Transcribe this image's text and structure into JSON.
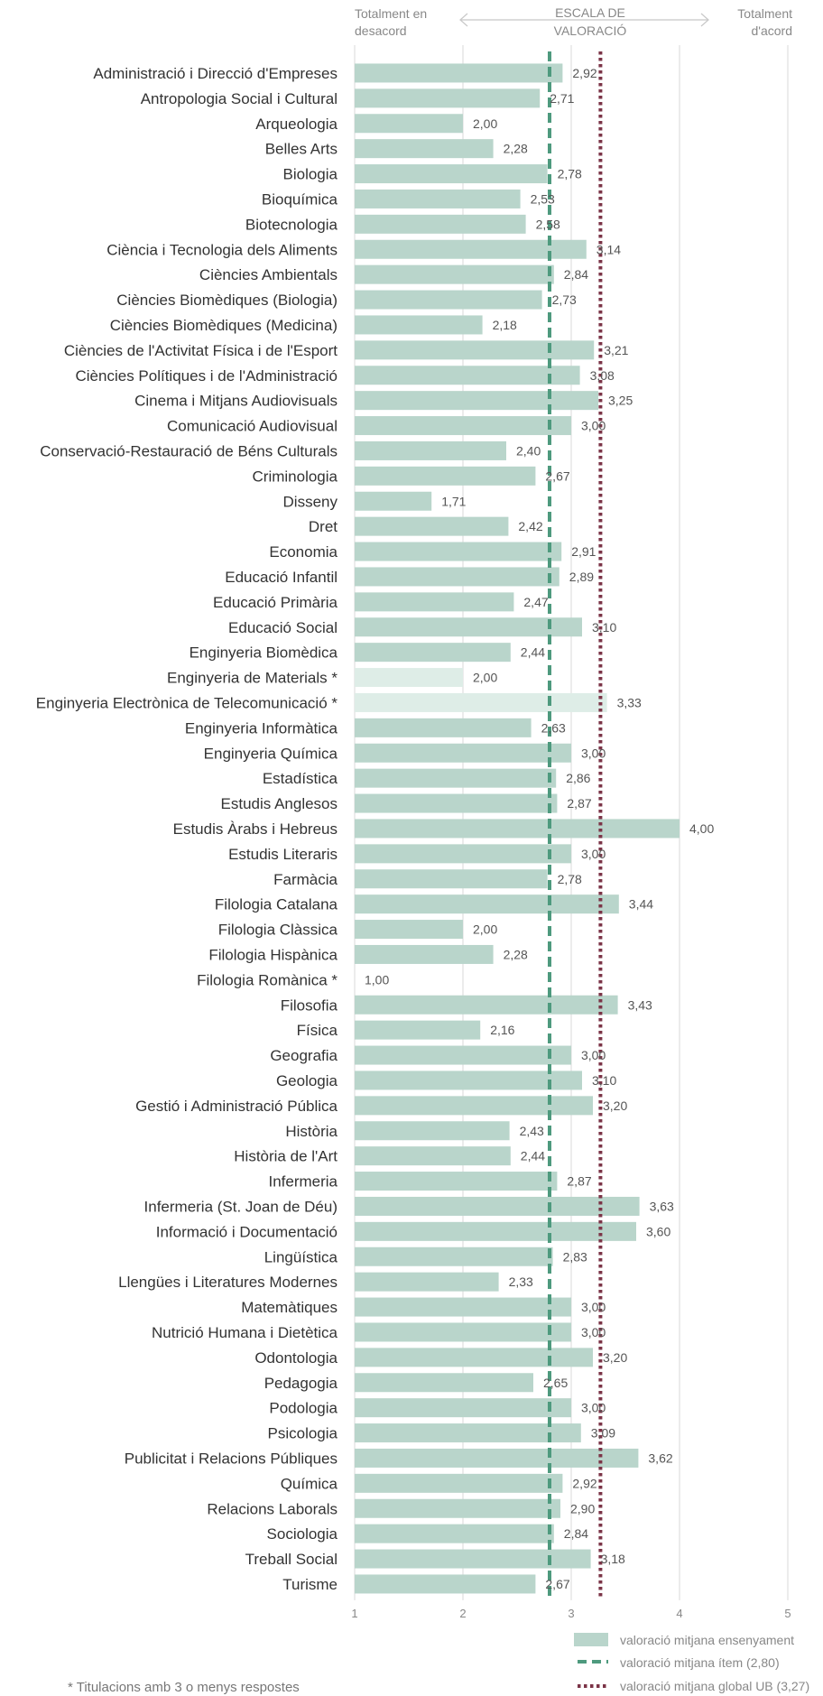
{
  "header": {
    "left_line1": "Totalment en",
    "left_line2": "desacord",
    "center_line1": "ESCALA DE",
    "center_line2": "VALORACIÓ",
    "right_line1": "Totalment",
    "right_line2": "d'acord"
  },
  "legend": {
    "bar_label": "valoració mitjana ensenyament",
    "item_label": "valoració mitjana ítem (2,80)",
    "global_label": "valoració mitjana global UB (3,27)"
  },
  "footnote": "* Titulacions amb 3 o menys respostes",
  "colors": {
    "bar": "#b9d5cb",
    "bar_light": "#deede7",
    "item_line": "#4e9a7e",
    "global_line": "#7b3447",
    "grid": "#d9d9d9"
  },
  "chart_data": {
    "type": "bar",
    "orientation": "horizontal",
    "xlim": [
      1,
      5
    ],
    "ticks": [
      "1",
      "2",
      "3",
      "4",
      "5"
    ],
    "reference_lines": [
      {
        "name": "valoració mitjana ítem (2,80)",
        "value": 2.8,
        "style": "dashed"
      },
      {
        "name": "valoració mitjana global UB (3,27)",
        "value": 3.27,
        "style": "dotted"
      }
    ],
    "categories": [
      "Administració i Direcció d'Empreses",
      "Antropologia Social i Cultural",
      "Arqueologia",
      "Belles Arts",
      "Biologia",
      "Bioquímica",
      "Biotecnologia",
      "Ciència i Tecnologia dels Aliments",
      "Ciències Ambientals",
      "Ciències Biomèdiques (Biologia)",
      "Ciències Biomèdiques (Medicina)",
      "Ciències de l'Activitat Física i de l'Esport",
      "Ciències Polítiques i de l'Administració",
      "Cinema i Mitjans Audiovisuals",
      "Comunicació Audiovisual",
      "Conservació-Restauració de Béns Culturals",
      "Criminologia",
      "Disseny",
      "Dret",
      "Economia",
      "Educació Infantil",
      "Educació Primària",
      "Educació Social",
      "Enginyeria Biomèdica",
      "Enginyeria de Materials *",
      "Enginyeria Electrònica de Telecomunicació *",
      "Enginyeria Informàtica",
      "Enginyeria Química",
      "Estadística",
      "Estudis Anglesos",
      "Estudis Àrabs i Hebreus",
      "Estudis Literaris",
      "Farmàcia",
      "Filologia Catalana",
      "Filologia Clàssica",
      "Filologia Hispànica",
      "Filologia Romànica *",
      "Filosofia",
      "Física",
      "Geografia",
      "Geologia",
      "Gestió i Administració Pública",
      "Història",
      "Història de l'Art",
      "Infermeria",
      "Infermeria (St. Joan de Déu)",
      "Informació i Documentació",
      "Lingüística",
      "Llengües i Literatures Modernes",
      "Matemàtiques",
      "Nutrició Humana i Dietètica",
      "Odontologia",
      "Pedagogia",
      "Podologia",
      "Psicologia",
      "Publicitat i Relacions Públiques",
      "Química",
      "Relacions Laborals",
      "Sociologia",
      "Treball Social",
      "Turisme"
    ],
    "values": [
      2.92,
      2.71,
      2.0,
      2.28,
      2.78,
      2.53,
      2.58,
      3.14,
      2.84,
      2.73,
      2.18,
      3.21,
      3.08,
      3.25,
      3.0,
      2.4,
      2.67,
      1.71,
      2.42,
      2.91,
      2.89,
      2.47,
      3.1,
      2.44,
      2.0,
      3.33,
      2.63,
      3.0,
      2.86,
      2.87,
      4.0,
      3.0,
      2.78,
      3.44,
      2.0,
      2.28,
      1.0,
      3.43,
      2.16,
      3.0,
      3.1,
      3.2,
      2.43,
      2.44,
      2.87,
      3.63,
      3.6,
      2.83,
      2.33,
      3.0,
      3.0,
      3.2,
      2.65,
      3.0,
      3.09,
      3.62,
      2.92,
      2.9,
      2.84,
      3.18,
      2.67
    ],
    "value_labels": [
      "2,92",
      "2,71",
      "2,00",
      "2,28",
      "2,78",
      "2,53",
      "2,58",
      "3,14",
      "2,84",
      "2,73",
      "2,18",
      "3,21",
      "3,08",
      "3,25",
      "3,00",
      "2,40",
      "2,67",
      "1,71",
      "2,42",
      "2,91",
      "2,89",
      "2,47",
      "3,10",
      "2,44",
      "2,00",
      "3,33",
      "2,63",
      "3,00",
      "2,86",
      "2,87",
      "4,00",
      "3,00",
      "2,78",
      "3,44",
      "2,00",
      "2,28",
      "1,00",
      "3,43",
      "2,16",
      "3,00",
      "3,10",
      "3,20",
      "2,43",
      "2,44",
      "2,87",
      "3,63",
      "3,60",
      "2,83",
      "2,33",
      "3,00",
      "3,00",
      "3,20",
      "2,65",
      "3,00",
      "3,09",
      "3,62",
      "2,92",
      "2,90",
      "2,84",
      "3,18",
      "2,67"
    ],
    "few_responses": [
      false,
      false,
      false,
      false,
      false,
      false,
      false,
      false,
      false,
      false,
      false,
      false,
      false,
      false,
      false,
      false,
      false,
      false,
      false,
      false,
      false,
      false,
      false,
      false,
      true,
      true,
      false,
      false,
      false,
      false,
      false,
      false,
      false,
      false,
      false,
      false,
      true,
      false,
      false,
      false,
      false,
      false,
      false,
      false,
      false,
      false,
      false,
      false,
      false,
      false,
      false,
      false,
      false,
      false,
      false,
      false,
      false,
      false,
      false,
      false,
      false
    ]
  }
}
